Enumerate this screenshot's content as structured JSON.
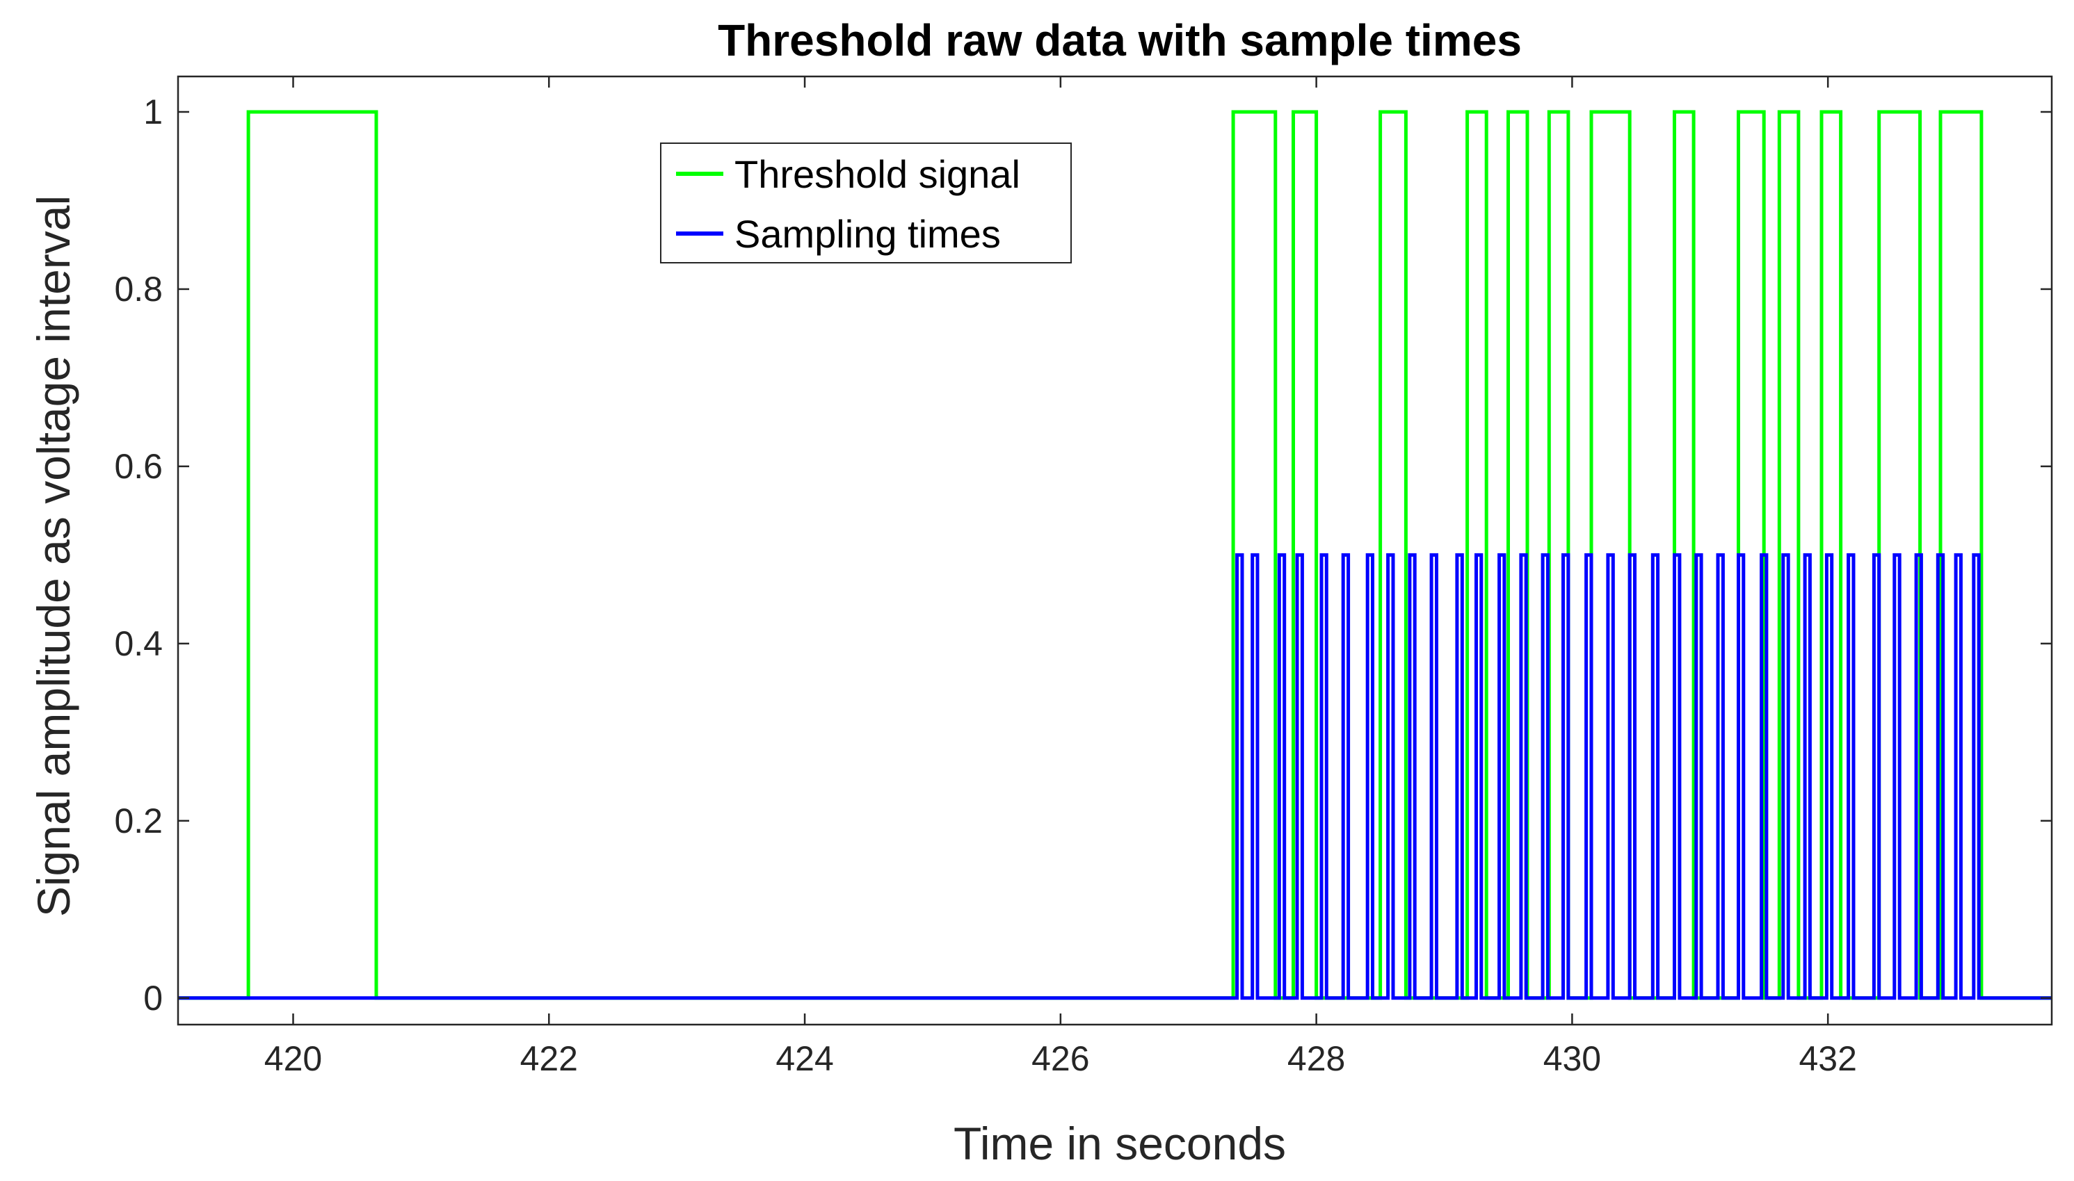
{
  "chart_data": {
    "type": "line",
    "title": "Threshold raw data with sample times",
    "xlabel": "Time in seconds",
    "ylabel": "Signal amplitude as voltage interval",
    "xlim": [
      419.1,
      433.75
    ],
    "ylim": [
      -0.03,
      1.04
    ],
    "x_ticks": [
      420,
      422,
      424,
      426,
      428,
      430,
      432
    ],
    "x_tick_labels": [
      "420",
      "422",
      "424",
      "426",
      "428",
      "430",
      "432"
    ],
    "y_ticks": [
      0,
      0.2,
      0.4,
      0.6,
      0.8,
      1
    ],
    "y_tick_labels": [
      "0",
      "0.2",
      "0.4",
      "0.6",
      "0.8",
      "1"
    ],
    "grid": false,
    "legend_position": "top-center",
    "series": [
      {
        "name": "Threshold signal",
        "color": "#00ff00",
        "kind": "square-pulses",
        "baseline": 0,
        "level": 1,
        "pulses": [
          [
            419.65,
            420.65
          ],
          [
            427.35,
            427.68
          ],
          [
            427.82,
            428.0
          ],
          [
            428.5,
            428.7
          ],
          [
            429.18,
            429.33
          ],
          [
            429.5,
            429.65
          ],
          [
            429.82,
            429.97
          ],
          [
            430.15,
            430.45
          ],
          [
            430.8,
            430.95
          ],
          [
            431.3,
            431.5
          ],
          [
            431.62,
            431.77
          ],
          [
            431.95,
            432.1
          ],
          [
            432.4,
            432.72
          ],
          [
            432.88,
            433.2
          ]
        ]
      },
      {
        "name": "Sampling times",
        "color": "#0000ff",
        "kind": "spikes",
        "baseline": 0,
        "level": 0.5,
        "width": 0.04,
        "times": [
          427.38,
          427.5,
          427.71,
          427.85,
          428.04,
          428.21,
          428.4,
          428.56,
          428.73,
          428.9,
          429.1,
          429.25,
          429.43,
          429.6,
          429.77,
          429.93,
          430.11,
          430.28,
          430.45,
          430.63,
          430.8,
          430.97,
          431.14,
          431.3,
          431.48,
          431.65,
          431.82,
          431.99,
          432.16,
          432.36,
          432.52,
          432.69,
          432.86,
          433.0,
          433.14
        ]
      }
    ]
  }
}
